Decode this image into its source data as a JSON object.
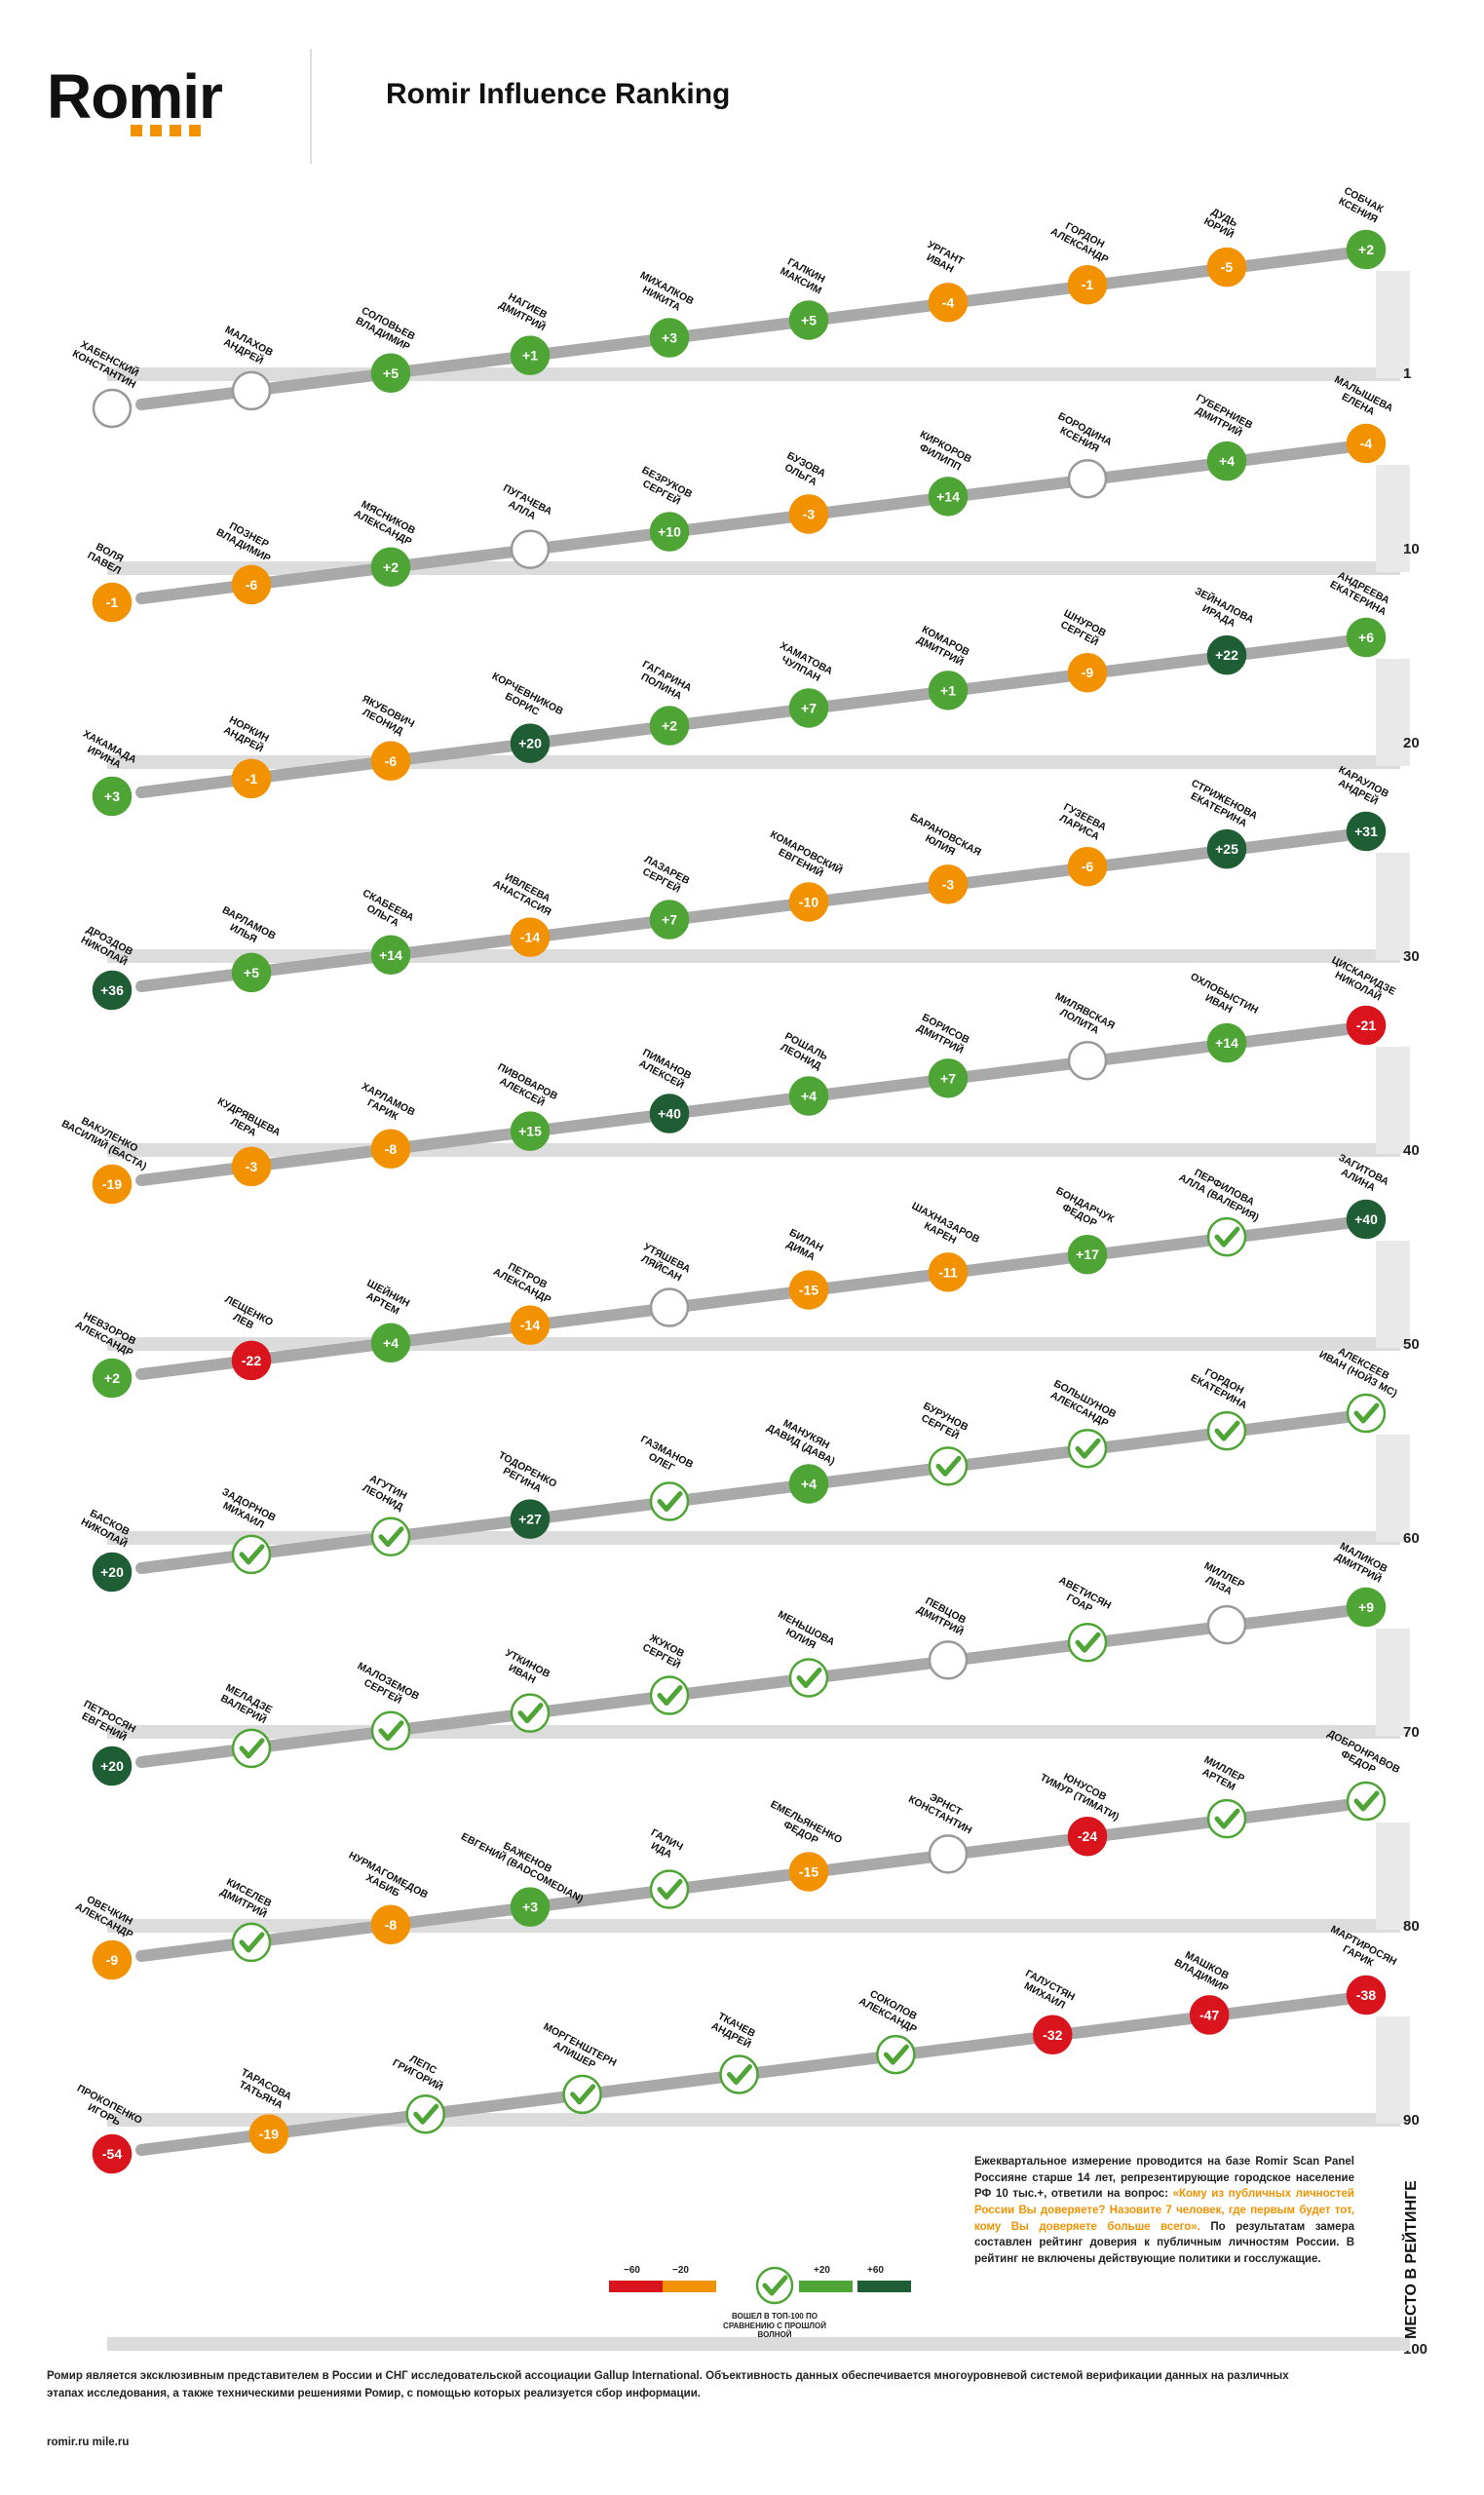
{
  "header": {
    "logo": "Romir",
    "title": "Romir Influence Ranking"
  },
  "axis_label": "МЕСТО В РЕЙТИНГЕ",
  "rank_ticks": [
    "1",
    "10",
    "20",
    "30",
    "40",
    "50",
    "60",
    "70",
    "80",
    "90",
    "100"
  ],
  "legend": {
    "labels": [
      "−60",
      "−20",
      "+20",
      "+60"
    ],
    "caption": "ВОШЕЛ В ТОП-100 ПО СРАВНЕНИЮ С ПРОШЛОЙ ВОЛНОЙ"
  },
  "description": {
    "part1": "Ежеквартальное измерение проводится на базе Romir Scan Panel Россияне старше 14 лет, репрезентирующие городское население РФ 10 тыс.+, ответили на вопрос:",
    "question": "«Кому из публичных личностей России Вы доверяете? Назовите 7 человек, где первым будет тот, кому Вы доверяете больше всего».",
    "part2": "По результатам замера составлен рейтинг доверия к публичным личностям России. В рейтинг не включены действующие политики и госслужащие."
  },
  "footer": "Ромир является эксклюзивным представителем в России и СНГ исследовательской ассоциации Gallup International. Объективность данных обеспечивается многоуровневой системой верификации данных на различных этапах исследования, а также техническими решениями Ромир, с помощью которых реализуется сбор информации.",
  "site": "romir.ru mile.ru",
  "colors": {
    "orange": "#f39200",
    "light_green": "#4ea535",
    "dark_green": "#1f5e34",
    "red": "#d9141c",
    "rail": "#a9a9a9"
  },
  "chart_data": {
    "type": "table",
    "rows": [
      {
        "rank": 1,
        "name": "ХАБЕНСКИЙ КОНСТАНТИН",
        "change": "new"
      },
      {
        "rank": 2,
        "name": "МАЛАХОВ АНДРЕЙ",
        "change": "new"
      },
      {
        "rank": 3,
        "name": "СОЛОВЬЕВ ВЛАДИМИР",
        "change": "+5"
      },
      {
        "rank": 4,
        "name": "НАГИЕВ ДМИТРИЙ",
        "change": "+1"
      },
      {
        "rank": 5,
        "name": "МИХАЛКОВ НИКИТА",
        "change": "+3"
      },
      {
        "rank": 6,
        "name": "ГАЛКИН МАКСИМ",
        "change": "+5"
      },
      {
        "rank": 7,
        "name": "УРГАНТ ИВАН",
        "change": "-4"
      },
      {
        "rank": 8,
        "name": "ГОРДОН АЛЕКСАНДР",
        "change": "-1"
      },
      {
        "rank": 9,
        "name": "ДУДЬ ЮРИЙ",
        "change": "-5"
      },
      {
        "rank": 10,
        "name": "СОБЧАК КСЕНИЯ",
        "change": "+2"
      },
      {
        "rank": 11,
        "name": "ВОЛЯ ПАВЕЛ",
        "change": "-1"
      },
      {
        "rank": 12,
        "name": "ПОЗНЕР ВЛАДИМИР",
        "change": "-6"
      },
      {
        "rank": 13,
        "name": "МЯСНИКОВ АЛЕКСАНДР",
        "change": "+2"
      },
      {
        "rank": 14,
        "name": "ПУГАЧЕВА АЛЛА",
        "change": "new"
      },
      {
        "rank": 15,
        "name": "БЕЗРУКОВ СЕРГЕЙ",
        "change": "+10"
      },
      {
        "rank": 16,
        "name": "БУЗОВА ОЛЬГА",
        "change": "-3"
      },
      {
        "rank": 17,
        "name": "КИРКОРОВ ФИЛИПП",
        "change": "+14"
      },
      {
        "rank": 18,
        "name": "БОРОДИНА КСЕНИЯ",
        "change": "new"
      },
      {
        "rank": 19,
        "name": "ГУБЕРНИЕВ ДМИТРИЙ",
        "change": "+4"
      },
      {
        "rank": 20,
        "name": "МАЛЫШЕВА ЕЛЕНА",
        "change": "-4"
      },
      {
        "rank": 21,
        "name": "ХАКАМАДА ИРИНА",
        "change": "+3"
      },
      {
        "rank": 22,
        "name": "НОРКИН АНДРЕЙ",
        "change": "-1"
      },
      {
        "rank": 23,
        "name": "ЯКУБОВИЧ ЛЕОНИД",
        "change": "-6"
      },
      {
        "rank": 24,
        "name": "КОРЧЕВНИКОВ БОРИС",
        "change": "+20"
      },
      {
        "rank": 25,
        "name": "ГАГАРИНА ПОЛИНА",
        "change": "+2"
      },
      {
        "rank": 26,
        "name": "ХАМАТОВА ЧУЛПАН",
        "change": "+7"
      },
      {
        "rank": 27,
        "name": "КОМАРОВ ДМИТРИЙ",
        "change": "+1"
      },
      {
        "rank": 28,
        "name": "ШНУРОВ СЕРГЕЙ",
        "change": "-9"
      },
      {
        "rank": 29,
        "name": "ЗЕЙНАЛОВА ИРАДА",
        "change": "+22"
      },
      {
        "rank": 30,
        "name": "АНДРЕЕВА ЕКАТЕРИНА",
        "change": "+6"
      },
      {
        "rank": 31,
        "name": "ДРОЗДОВ НИКОЛАЙ",
        "change": "+36"
      },
      {
        "rank": 32,
        "name": "ВАРЛАМОВ ИЛЬЯ",
        "change": "+5"
      },
      {
        "rank": 33,
        "name": "СКАБЕЕВА ОЛЬГА",
        "change": "+14"
      },
      {
        "rank": 34,
        "name": "ИВЛЕЕВА АНАСТАСИЯ",
        "change": "-14"
      },
      {
        "rank": 35,
        "name": "ЛАЗАРЕВ СЕРГЕЙ",
        "change": "+7"
      },
      {
        "rank": 36,
        "name": "КОМАРОВСКИЙ ЕВГЕНИЙ",
        "change": "-10"
      },
      {
        "rank": 37,
        "name": "БАРАНОВСКАЯ ЮЛИЯ",
        "change": "-3"
      },
      {
        "rank": 38,
        "name": "ГУЗЕЕВА ЛАРИСА",
        "change": "-6"
      },
      {
        "rank": 39,
        "name": "СТРИЖЕНОВА ЕКАТЕРИНА",
        "change": "+25"
      },
      {
        "rank": 40,
        "name": "КАРАУЛОВ АНДРЕЙ",
        "change": "+31"
      },
      {
        "rank": 41,
        "name": "ВАКУЛЕНКО ВАСИЛИЙ (БАСТА)",
        "change": "-19"
      },
      {
        "rank": 42,
        "name": "КУДРЯВЦЕВА ЛЕРА",
        "change": "-3"
      },
      {
        "rank": 43,
        "name": "ХАРЛАМОВ ГАРИК",
        "change": "-8"
      },
      {
        "rank": 44,
        "name": "ПИВОВАРОВ АЛЕКСЕЙ",
        "change": "+15"
      },
      {
        "rank": 45,
        "name": "ПИМАНОВ АЛЕКСЕЙ",
        "change": "+40"
      },
      {
        "rank": 46,
        "name": "РОШАЛЬ ЛЕОНИД",
        "change": "+4"
      },
      {
        "rank": 47,
        "name": "БОРИСОВ ДМИТРИЙ",
        "change": "+7"
      },
      {
        "rank": 48,
        "name": "МИЛЯВСКАЯ ЛОЛИТА",
        "change": "new"
      },
      {
        "rank": 49,
        "name": "ОХЛОБЫСТИН ИВАН",
        "change": "+14"
      },
      {
        "rank": 50,
        "name": "ЦИСКАРИДЗЕ НИКОЛАЙ",
        "change": "-21"
      },
      {
        "rank": 51,
        "name": "НЕВЗОРОВ АЛЕКСАНДР",
        "change": "+2"
      },
      {
        "rank": 52,
        "name": "ЛЕЩЕНКО ЛЕВ",
        "change": "-22"
      },
      {
        "rank": 53,
        "name": "ШЕЙНИН АРТЕМ",
        "change": "+4"
      },
      {
        "rank": 54,
        "name": "ПЕТРОВ АЛЕКСАНДР",
        "change": "-14"
      },
      {
        "rank": 55,
        "name": "УТЯШЕВА ЛЯЙСАН",
        "change": "new"
      },
      {
        "rank": 56,
        "name": "БИЛАН ДИМА",
        "change": "-15"
      },
      {
        "rank": 57,
        "name": "ШАХНАЗАРОВ КАРЕН",
        "change": "-11"
      },
      {
        "rank": 58,
        "name": "БОНДАРЧУК ФЕДОР",
        "change": "+17"
      },
      {
        "rank": 59,
        "name": "ПЕРФИЛОВА АЛЛА (ВАЛЕРИЯ)",
        "change": "entered"
      },
      {
        "rank": 60,
        "name": "ЗАГИТОВА АЛИНА",
        "change": "+40"
      },
      {
        "rank": 61,
        "name": "БАСКОВ НИКОЛАЙ",
        "change": "+20"
      },
      {
        "rank": 62,
        "name": "ЗАДОРНОВ МИХАИЛ",
        "change": "entered"
      },
      {
        "rank": 63,
        "name": "АГУТИН ЛЕОНИД",
        "change": "entered"
      },
      {
        "rank": 64,
        "name": "ТОДОРЕНКО РЕГИНА",
        "change": "+27"
      },
      {
        "rank": 65,
        "name": "ГАЗМАНОВ ОЛЕГ",
        "change": "entered"
      },
      {
        "rank": 66,
        "name": "МАНУКЯН ДАВИД (ДАВА)",
        "change": "+4"
      },
      {
        "rank": 67,
        "name": "БУРУНОВ СЕРГЕЙ",
        "change": "entered"
      },
      {
        "rank": 68,
        "name": "БОЛЬШУНОВ АЛЕКСАНДР",
        "change": "entered"
      },
      {
        "rank": 69,
        "name": "ГОРДОН ЕКАТЕРИНА",
        "change": "entered"
      },
      {
        "rank": 70,
        "name": "АЛЕКСЕЕВ ИВАН (НОЙЗ МС)",
        "change": "entered"
      },
      {
        "rank": 71,
        "name": "ПЕТРОСЯН ЕВГЕНИЙ",
        "change": "+20"
      },
      {
        "rank": 72,
        "name": "МЕЛАДЗЕ ВАЛЕРИЙ",
        "change": "entered"
      },
      {
        "rank": 73,
        "name": "МАЛОЗЕМОВ СЕРГЕЙ",
        "change": "entered"
      },
      {
        "rank": 74,
        "name": "УТКИНОВ ИВАН",
        "change": "entered"
      },
      {
        "rank": 75,
        "name": "ЖУКОВ СЕРГЕЙ",
        "change": "entered"
      },
      {
        "rank": 76,
        "name": "МЕНЬШОВА ЮЛИЯ",
        "change": "entered"
      },
      {
        "rank": 77,
        "name": "ПЕВЦОВ ДМИТРИЙ",
        "change": "new"
      },
      {
        "rank": 78,
        "name": "АВЕТИСЯН ГОАР",
        "change": "entered"
      },
      {
        "rank": 79,
        "name": "МИЛЛЕР ЛИЗА",
        "change": "new"
      },
      {
        "rank": 80,
        "name": "МАЛИКОВ ДМИТРИЙ",
        "change": "+9"
      },
      {
        "rank": 81,
        "name": "ОВЕЧКИН АЛЕКСАНДР",
        "change": "-9"
      },
      {
        "rank": 82,
        "name": "КИСЕЛЕВ ДМИТРИЙ",
        "change": "entered"
      },
      {
        "rank": 83,
        "name": "НУРМАГОМЕДОВ ХАБИБ",
        "change": "-8"
      },
      {
        "rank": 84,
        "name": "БАЖЕНОВ ЕВГЕНИЙ (BADCOMEDIAN)",
        "change": "+3"
      },
      {
        "rank": 85,
        "name": "ГАЛИЧ ИДА",
        "change": "entered"
      },
      {
        "rank": 86,
        "name": "ЕМЕЛЬЯНЕНКО ФЕДОР",
        "change": "-15"
      },
      {
        "rank": 87,
        "name": "ЭРНСТ КОНСТАНТИН",
        "change": "new"
      },
      {
        "rank": 88,
        "name": "ЮНУСОВ ТИМУР (ТИМАТИ)",
        "change": "-24"
      },
      {
        "rank": 89,
        "name": "МИЛЛЕР АРТЕМ",
        "change": "entered"
      },
      {
        "rank": 90,
        "name": "ДОБРОНРАВОВ ФЕДОР",
        "change": "entered"
      },
      {
        "rank": 91,
        "name": "ПРОКОПЕНКО ИГОРЬ",
        "change": "-54"
      },
      {
        "rank": 92,
        "name": "ТАРАСОВА ТАТЬЯНА",
        "change": "-19"
      },
      {
        "rank": 93,
        "name": "ЛЕПС ГРИГОРИЙ",
        "change": "entered"
      },
      {
        "rank": 94,
        "name": "МОРГЕНШТЕРН АЛИШЕР",
        "change": "entered"
      },
      {
        "rank": 95,
        "name": "ТКАЧЕВ АНДРЕЙ",
        "change": "entered"
      },
      {
        "rank": 96,
        "name": "СОКОЛОВ АЛЕКСАНДР",
        "change": "entered"
      },
      {
        "rank": 97,
        "name": "ГАЛУСТЯН МИХАИЛ",
        "change": "-32"
      },
      {
        "rank": 98,
        "name": "МАШКОВ ВЛАДИМИР",
        "change": "-47"
      },
      {
        "rank": 99,
        "name": "МАРТИРОСЯН ГАРИК",
        "change": "-38"
      }
    ]
  }
}
